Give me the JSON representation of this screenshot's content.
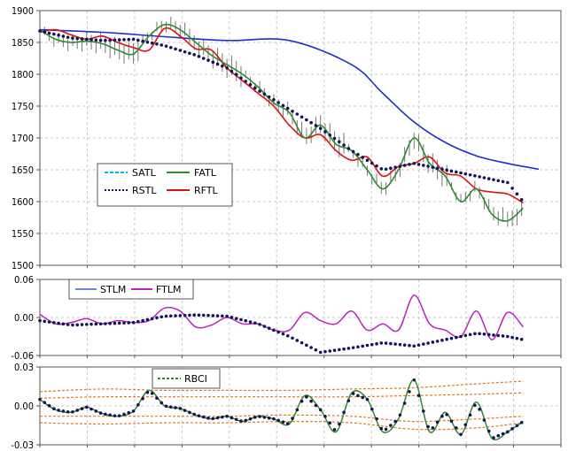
{
  "chart_data": [
    {
      "type": "line",
      "title": "",
      "ylim": [
        1500,
        1900
      ],
      "y_ticks": [
        "1900",
        "1850",
        "1800",
        "1750",
        "1700",
        "1650",
        "1600",
        "1550",
        "1500"
      ],
      "x_range": [
        0,
        160
      ],
      "grid": true,
      "legend_position": "left-center",
      "legend": [
        "SATL",
        "FATL",
        "RSTL",
        "RFTL"
      ],
      "colors": {
        "SATL": "#00b0f0",
        "FATL": "#2e8b2e",
        "RSTL": "#14145a",
        "RFTL": "#dd1111",
        "price": "#777777",
        "blue_curve": "#1f2fc8"
      },
      "series": [
        {
          "name": "SATL",
          "x": [
            0,
            20,
            40,
            60,
            80,
            100,
            110,
            120,
            130,
            140,
            150,
            160
          ],
          "values": [
            1870,
            1866,
            1859,
            1853,
            1853,
            1815,
            1770,
            1725,
            1693,
            1672,
            1660,
            1651
          ]
        },
        {
          "name": "RSTL",
          "x": [
            0,
            10,
            20,
            30,
            40,
            50,
            60,
            70,
            80,
            90,
            100,
            110,
            120,
            130,
            140,
            150,
            155
          ],
          "values": [
            1868,
            1857,
            1853,
            1855,
            1845,
            1830,
            1810,
            1775,
            1745,
            1715,
            1680,
            1650,
            1660,
            1650,
            1640,
            1630,
            1600
          ]
        },
        {
          "name": "RFTL",
          "x": [
            0,
            5,
            10,
            15,
            20,
            25,
            30,
            35,
            40,
            45,
            50,
            55,
            60,
            65,
            70,
            75,
            80,
            85,
            90,
            95,
            100,
            105,
            110,
            115,
            120,
            125,
            130,
            135,
            140,
            145,
            150,
            155
          ],
          "values": [
            1866,
            1870,
            1862,
            1855,
            1860,
            1850,
            1842,
            1838,
            1872,
            1860,
            1840,
            1838,
            1810,
            1790,
            1770,
            1750,
            1720,
            1700,
            1705,
            1680,
            1665,
            1670,
            1640,
            1655,
            1660,
            1670,
            1645,
            1640,
            1620,
            1615,
            1612,
            1598
          ]
        },
        {
          "name": "FATL",
          "x": [
            0,
            5,
            10,
            15,
            20,
            25,
            30,
            35,
            40,
            45,
            50,
            55,
            60,
            65,
            70,
            75,
            80,
            85,
            90,
            95,
            100,
            105,
            110,
            115,
            120,
            125,
            130,
            135,
            140,
            145,
            150,
            155
          ],
          "values": [
            1870,
            1855,
            1850,
            1852,
            1848,
            1838,
            1832,
            1860,
            1878,
            1870,
            1850,
            1830,
            1815,
            1800,
            1780,
            1755,
            1740,
            1700,
            1720,
            1690,
            1680,
            1650,
            1620,
            1650,
            1700,
            1660,
            1640,
            1600,
            1620,
            1580,
            1570,
            1590
          ]
        }
      ]
    },
    {
      "type": "line",
      "title": "",
      "ylim": [
        -0.06,
        0.06
      ],
      "y_ticks": [
        "0.06",
        "0.00",
        "-0.06"
      ],
      "x_range": [
        0,
        160
      ],
      "grid": true,
      "legend": [
        "STLM",
        "FTLM"
      ],
      "colors": {
        "STLM": "#6688dd",
        "FTLM": "#c020c0",
        "STLM_dots": "#14145a"
      },
      "series": [
        {
          "name": "STLM",
          "x": [
            0,
            10,
            20,
            30,
            40,
            50,
            60,
            70,
            80,
            90,
            100,
            110,
            120,
            130,
            140,
            150,
            155
          ],
          "values": [
            -0.005,
            -0.012,
            -0.01,
            -0.008,
            0.002,
            0.004,
            0.002,
            -0.01,
            -0.03,
            -0.055,
            -0.048,
            -0.04,
            -0.045,
            -0.035,
            -0.025,
            -0.03,
            -0.035
          ]
        },
        {
          "name": "FTLM",
          "x": [
            0,
            5,
            10,
            15,
            20,
            25,
            30,
            35,
            40,
            45,
            50,
            55,
            60,
            65,
            70,
            75,
            80,
            85,
            90,
            95,
            100,
            105,
            110,
            115,
            120,
            125,
            130,
            135,
            140,
            145,
            150,
            155
          ],
          "values": [
            0.005,
            -0.01,
            -0.008,
            -0.002,
            -0.01,
            -0.005,
            -0.008,
            -0.005,
            0.015,
            0.01,
            -0.015,
            -0.012,
            0.0,
            -0.01,
            -0.01,
            -0.02,
            -0.02,
            0.008,
            -0.005,
            -0.01,
            0.01,
            -0.02,
            -0.01,
            -0.02,
            0.035,
            -0.01,
            -0.02,
            -0.03,
            0.01,
            -0.035,
            0.008,
            -0.015
          ]
        }
      ]
    },
    {
      "type": "line",
      "title": "",
      "ylim": [
        -0.03,
        0.03
      ],
      "y_ticks": [
        "0.03",
        "0.00",
        "-0.03"
      ],
      "x_range": [
        0,
        160
      ],
      "grid": true,
      "legend": [
        "RBCI"
      ],
      "colors": {
        "RBCI": "#2e8b2e",
        "RBCI_dots": "#14145a",
        "bands": "#e07a20"
      },
      "series": [
        {
          "name": "RBCI",
          "x": [
            0,
            5,
            10,
            15,
            20,
            25,
            30,
            35,
            40,
            45,
            50,
            55,
            60,
            65,
            70,
            75,
            80,
            85,
            90,
            95,
            100,
            105,
            110,
            115,
            120,
            125,
            130,
            135,
            140,
            145,
            150,
            155
          ],
          "values": [
            0.005,
            -0.003,
            -0.005,
            -0.001,
            -0.006,
            -0.008,
            -0.004,
            0.012,
            0.0,
            -0.002,
            -0.007,
            -0.01,
            -0.008,
            -0.012,
            -0.008,
            -0.01,
            -0.014,
            0.008,
            -0.003,
            -0.02,
            0.01,
            0.005,
            -0.02,
            -0.01,
            0.02,
            -0.02,
            -0.005,
            -0.022,
            0.003,
            -0.025,
            -0.02,
            -0.012
          ]
        }
      ],
      "bands": [
        {
          "x": [
            0,
            20,
            40,
            60,
            80,
            100,
            120,
            140,
            155
          ],
          "values": [
            0.011,
            0.013,
            0.012,
            0.012,
            0.012,
            0.013,
            0.014,
            0.017,
            0.019
          ]
        },
        {
          "x": [
            0,
            20,
            40,
            60,
            80,
            100,
            120,
            140,
            155
          ],
          "values": [
            0.006,
            0.007,
            0.007,
            0.007,
            0.007,
            0.007,
            0.008,
            0.009,
            0.01
          ]
        },
        {
          "x": [
            0,
            20,
            40,
            60,
            80,
            100,
            120,
            140,
            155
          ],
          "values": [
            -0.008,
            -0.008,
            -0.008,
            -0.008,
            -0.007,
            -0.008,
            -0.012,
            -0.01,
            -0.008
          ]
        },
        {
          "x": [
            0,
            20,
            40,
            60,
            80,
            100,
            120,
            140,
            155
          ],
          "values": [
            -0.013,
            -0.014,
            -0.013,
            -0.013,
            -0.012,
            -0.013,
            -0.018,
            -0.017,
            -0.013
          ]
        }
      ]
    }
  ]
}
